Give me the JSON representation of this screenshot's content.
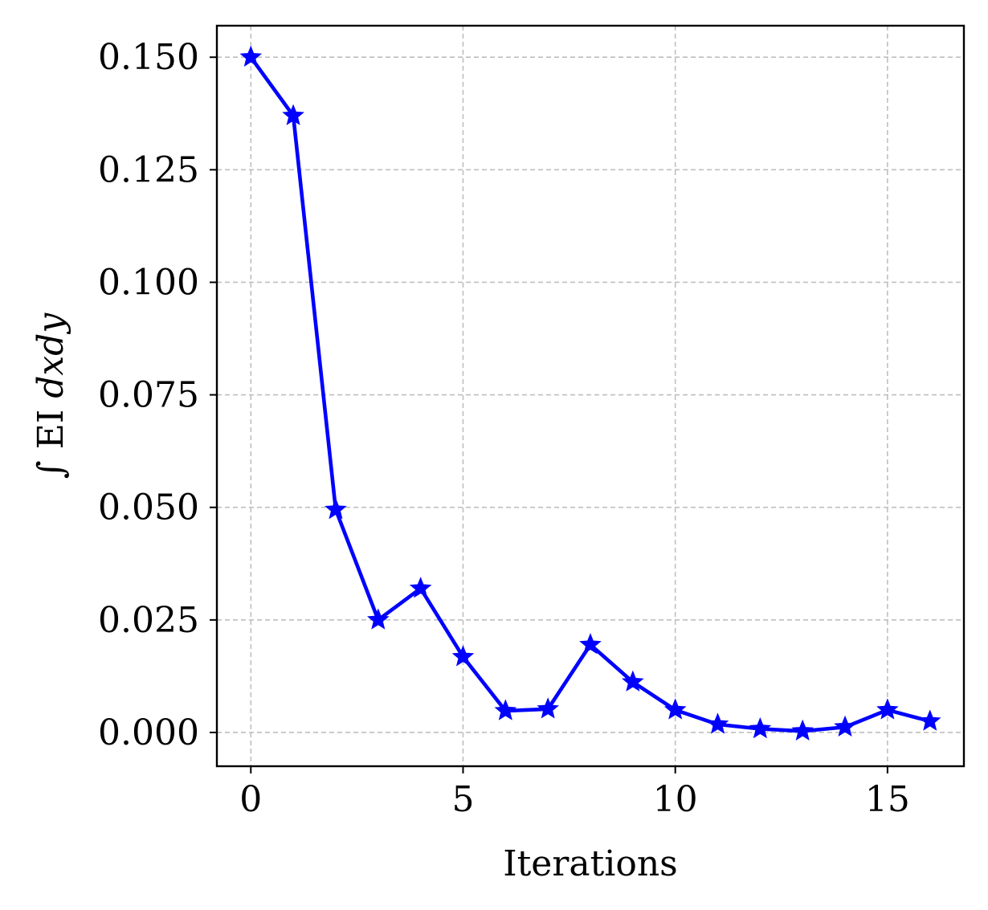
{
  "chart_data": {
    "type": "line",
    "title": "",
    "xlabel": "Iterations",
    "ylabel_prefix": "∫ EI ",
    "ylabel_math": "dxdy",
    "xlim": [
      -0.8,
      16.8
    ],
    "ylim": [
      -0.0075,
      0.157
    ],
    "xticks": [
      0,
      5,
      10,
      15
    ],
    "xtick_labels": [
      "0",
      "5",
      "10",
      "15"
    ],
    "yticks": [
      0.0,
      0.025,
      0.05,
      0.075,
      0.1,
      0.125,
      0.15
    ],
    "ytick_labels": [
      "0.000",
      "0.025",
      "0.050",
      "0.075",
      "0.100",
      "0.125",
      "0.150"
    ],
    "grid": true,
    "legend": "none",
    "series": [
      {
        "color": "#0000ff",
        "marker": "star",
        "x": [
          0,
          1,
          2,
          3,
          4,
          5,
          6,
          7,
          8,
          9,
          10,
          11,
          12,
          13,
          14,
          15,
          16
        ],
        "values": [
          0.15,
          0.137,
          0.0495,
          0.025,
          0.032,
          0.0168,
          0.0048,
          0.0052,
          0.0195,
          0.0112,
          0.005,
          0.0018,
          0.0008,
          0.0003,
          0.0012,
          0.005,
          0.0025
        ]
      }
    ]
  }
}
